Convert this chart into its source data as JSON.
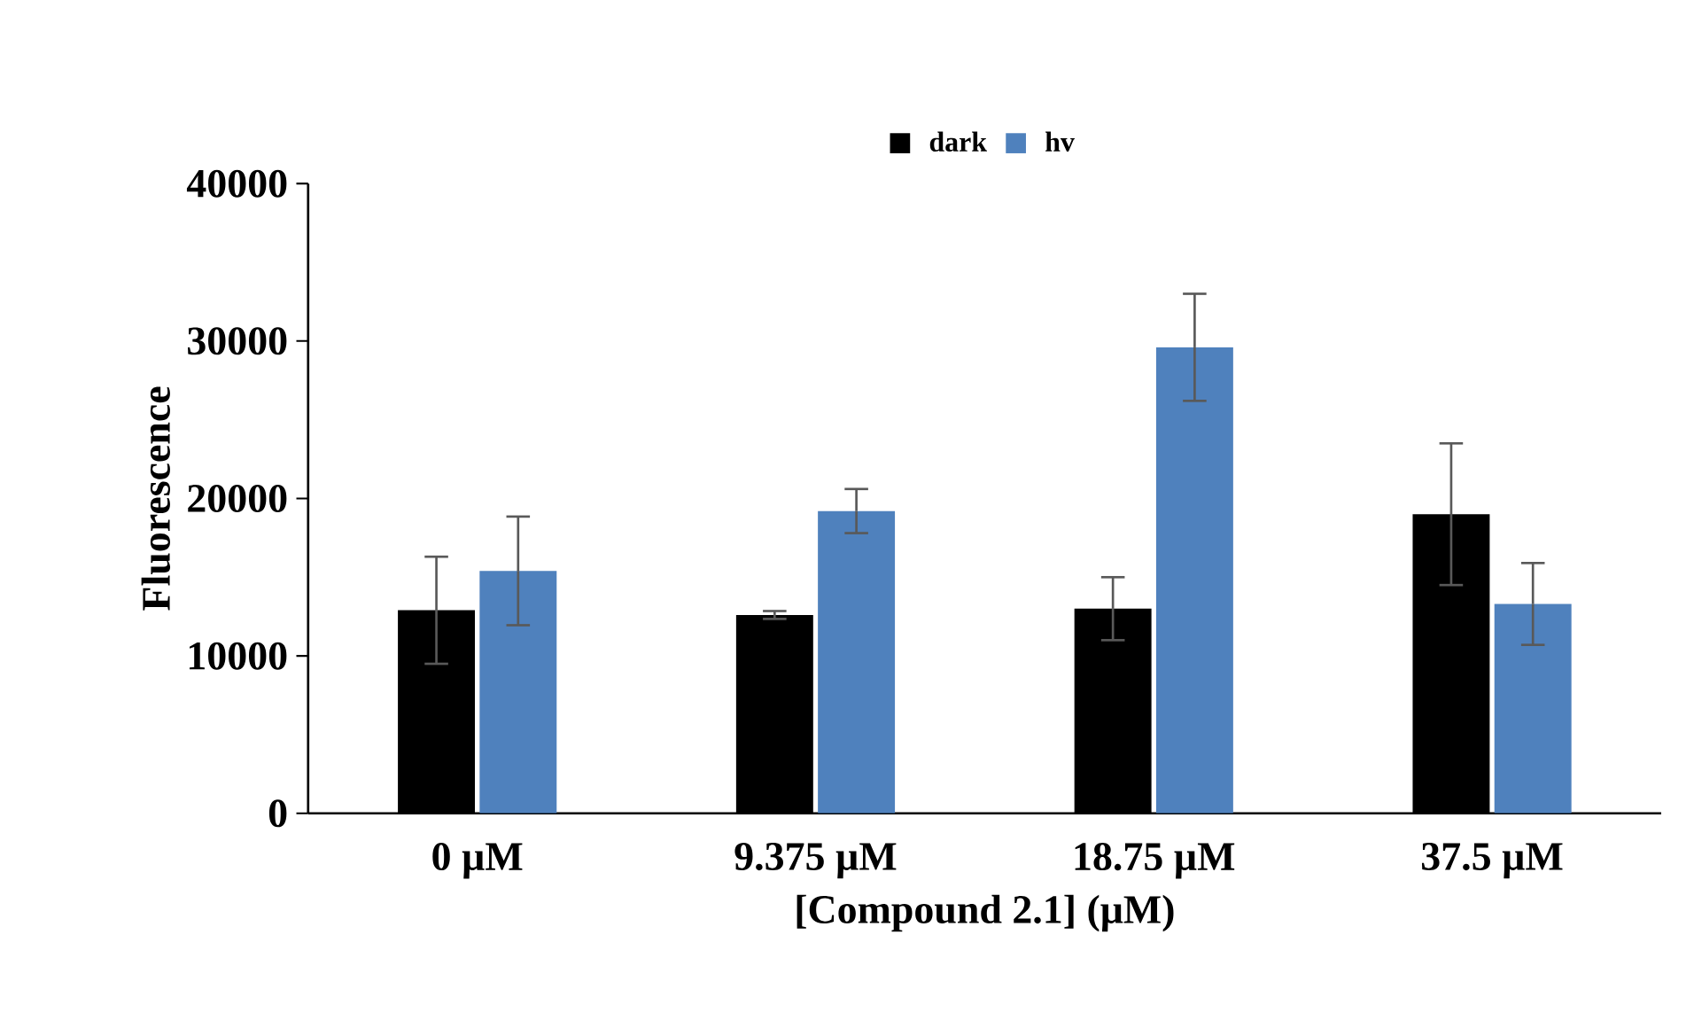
{
  "chart_data": {
    "type": "bar",
    "xlabel": "[Compound 2.1] (μM)",
    "ylabel": "Fluorescence",
    "categories": [
      "0 µM",
      "9.375 µM",
      "18.75 µM",
      "37.5 µM"
    ],
    "series": [
      {
        "name": "dark",
        "color": "#000000",
        "values": [
          12900,
          12600,
          13000,
          19000
        ],
        "errors": [
          3400,
          250,
          2000,
          4500
        ]
      },
      {
        "name": "hv",
        "color": "#4f81bd",
        "values": [
          15400,
          19200,
          29600,
          13300
        ],
        "errors": [
          3450,
          1400,
          3400,
          2600
        ]
      }
    ],
    "ylim": [
      0,
      40000
    ],
    "yticks": [
      0,
      10000,
      20000,
      30000,
      40000
    ],
    "legend": "top",
    "grid": false
  }
}
